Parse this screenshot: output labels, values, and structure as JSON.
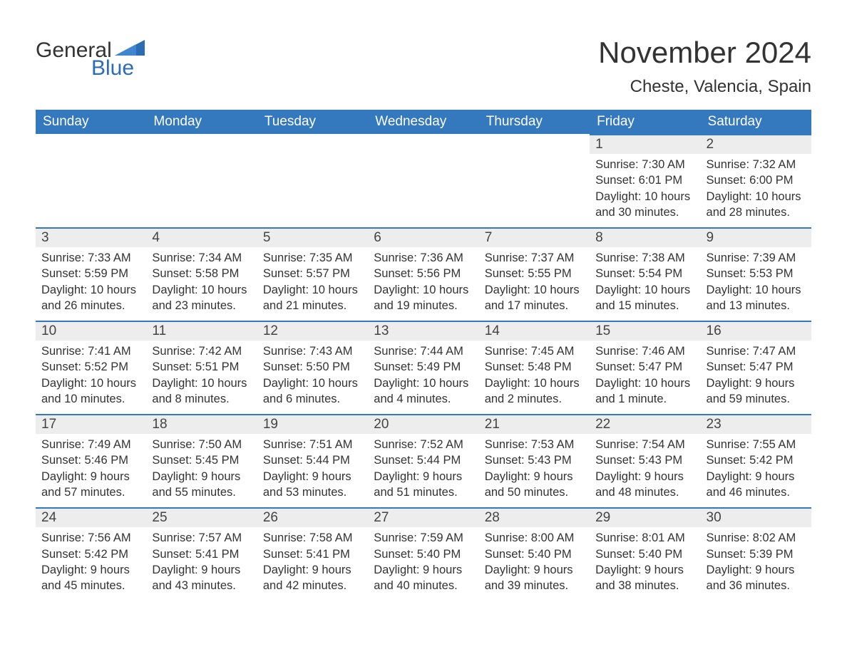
{
  "logo": {
    "word1": "General",
    "word2": "Blue"
  },
  "title": "November 2024",
  "location": "Cheste, Valencia, Spain",
  "colors": {
    "header_bg": "#3478bd",
    "header_text": "#ffffff",
    "rule": "#3478bd",
    "daynum_bg": "#ededed",
    "body_text": "#333333",
    "logo_blue": "#2a6db5"
  },
  "typography": {
    "title_fontsize": 42,
    "location_fontsize": 24,
    "header_fontsize": 19,
    "daynum_fontsize": 19,
    "body_fontsize": 16.5
  },
  "table": {
    "columns": [
      "Sunday",
      "Monday",
      "Tuesday",
      "Wednesday",
      "Thursday",
      "Friday",
      "Saturday"
    ],
    "weeks": [
      [
        null,
        null,
        null,
        null,
        null,
        {
          "n": "1",
          "sunrise": "7:30 AM",
          "sunset": "6:01 PM",
          "daylight": "10 hours and 30 minutes."
        },
        {
          "n": "2",
          "sunrise": "7:32 AM",
          "sunset": "6:00 PM",
          "daylight": "10 hours and 28 minutes."
        }
      ],
      [
        {
          "n": "3",
          "sunrise": "7:33 AM",
          "sunset": "5:59 PM",
          "daylight": "10 hours and 26 minutes."
        },
        {
          "n": "4",
          "sunrise": "7:34 AM",
          "sunset": "5:58 PM",
          "daylight": "10 hours and 23 minutes."
        },
        {
          "n": "5",
          "sunrise": "7:35 AM",
          "sunset": "5:57 PM",
          "daylight": "10 hours and 21 minutes."
        },
        {
          "n": "6",
          "sunrise": "7:36 AM",
          "sunset": "5:56 PM",
          "daylight": "10 hours and 19 minutes."
        },
        {
          "n": "7",
          "sunrise": "7:37 AM",
          "sunset": "5:55 PM",
          "daylight": "10 hours and 17 minutes."
        },
        {
          "n": "8",
          "sunrise": "7:38 AM",
          "sunset": "5:54 PM",
          "daylight": "10 hours and 15 minutes."
        },
        {
          "n": "9",
          "sunrise": "7:39 AM",
          "sunset": "5:53 PM",
          "daylight": "10 hours and 13 minutes."
        }
      ],
      [
        {
          "n": "10",
          "sunrise": "7:41 AM",
          "sunset": "5:52 PM",
          "daylight": "10 hours and 10 minutes."
        },
        {
          "n": "11",
          "sunrise": "7:42 AM",
          "sunset": "5:51 PM",
          "daylight": "10 hours and 8 minutes."
        },
        {
          "n": "12",
          "sunrise": "7:43 AM",
          "sunset": "5:50 PM",
          "daylight": "10 hours and 6 minutes."
        },
        {
          "n": "13",
          "sunrise": "7:44 AM",
          "sunset": "5:49 PM",
          "daylight": "10 hours and 4 minutes."
        },
        {
          "n": "14",
          "sunrise": "7:45 AM",
          "sunset": "5:48 PM",
          "daylight": "10 hours and 2 minutes."
        },
        {
          "n": "15",
          "sunrise": "7:46 AM",
          "sunset": "5:47 PM",
          "daylight": "10 hours and 1 minute."
        },
        {
          "n": "16",
          "sunrise": "7:47 AM",
          "sunset": "5:47 PM",
          "daylight": "9 hours and 59 minutes."
        }
      ],
      [
        {
          "n": "17",
          "sunrise": "7:49 AM",
          "sunset": "5:46 PM",
          "daylight": "9 hours and 57 minutes."
        },
        {
          "n": "18",
          "sunrise": "7:50 AM",
          "sunset": "5:45 PM",
          "daylight": "9 hours and 55 minutes."
        },
        {
          "n": "19",
          "sunrise": "7:51 AM",
          "sunset": "5:44 PM",
          "daylight": "9 hours and 53 minutes."
        },
        {
          "n": "20",
          "sunrise": "7:52 AM",
          "sunset": "5:44 PM",
          "daylight": "9 hours and 51 minutes."
        },
        {
          "n": "21",
          "sunrise": "7:53 AM",
          "sunset": "5:43 PM",
          "daylight": "9 hours and 50 minutes."
        },
        {
          "n": "22",
          "sunrise": "7:54 AM",
          "sunset": "5:43 PM",
          "daylight": "9 hours and 48 minutes."
        },
        {
          "n": "23",
          "sunrise": "7:55 AM",
          "sunset": "5:42 PM",
          "daylight": "9 hours and 46 minutes."
        }
      ],
      [
        {
          "n": "24",
          "sunrise": "7:56 AM",
          "sunset": "5:42 PM",
          "daylight": "9 hours and 45 minutes."
        },
        {
          "n": "25",
          "sunrise": "7:57 AM",
          "sunset": "5:41 PM",
          "daylight": "9 hours and 43 minutes."
        },
        {
          "n": "26",
          "sunrise": "7:58 AM",
          "sunset": "5:41 PM",
          "daylight": "9 hours and 42 minutes."
        },
        {
          "n": "27",
          "sunrise": "7:59 AM",
          "sunset": "5:40 PM",
          "daylight": "9 hours and 40 minutes."
        },
        {
          "n": "28",
          "sunrise": "8:00 AM",
          "sunset": "5:40 PM",
          "daylight": "9 hours and 39 minutes."
        },
        {
          "n": "29",
          "sunrise": "8:01 AM",
          "sunset": "5:40 PM",
          "daylight": "9 hours and 38 minutes."
        },
        {
          "n": "30",
          "sunrise": "8:02 AM",
          "sunset": "5:39 PM",
          "daylight": "9 hours and 36 minutes."
        }
      ]
    ]
  },
  "labels": {
    "sunrise": "Sunrise: ",
    "sunset": "Sunset: ",
    "daylight": "Daylight: "
  }
}
